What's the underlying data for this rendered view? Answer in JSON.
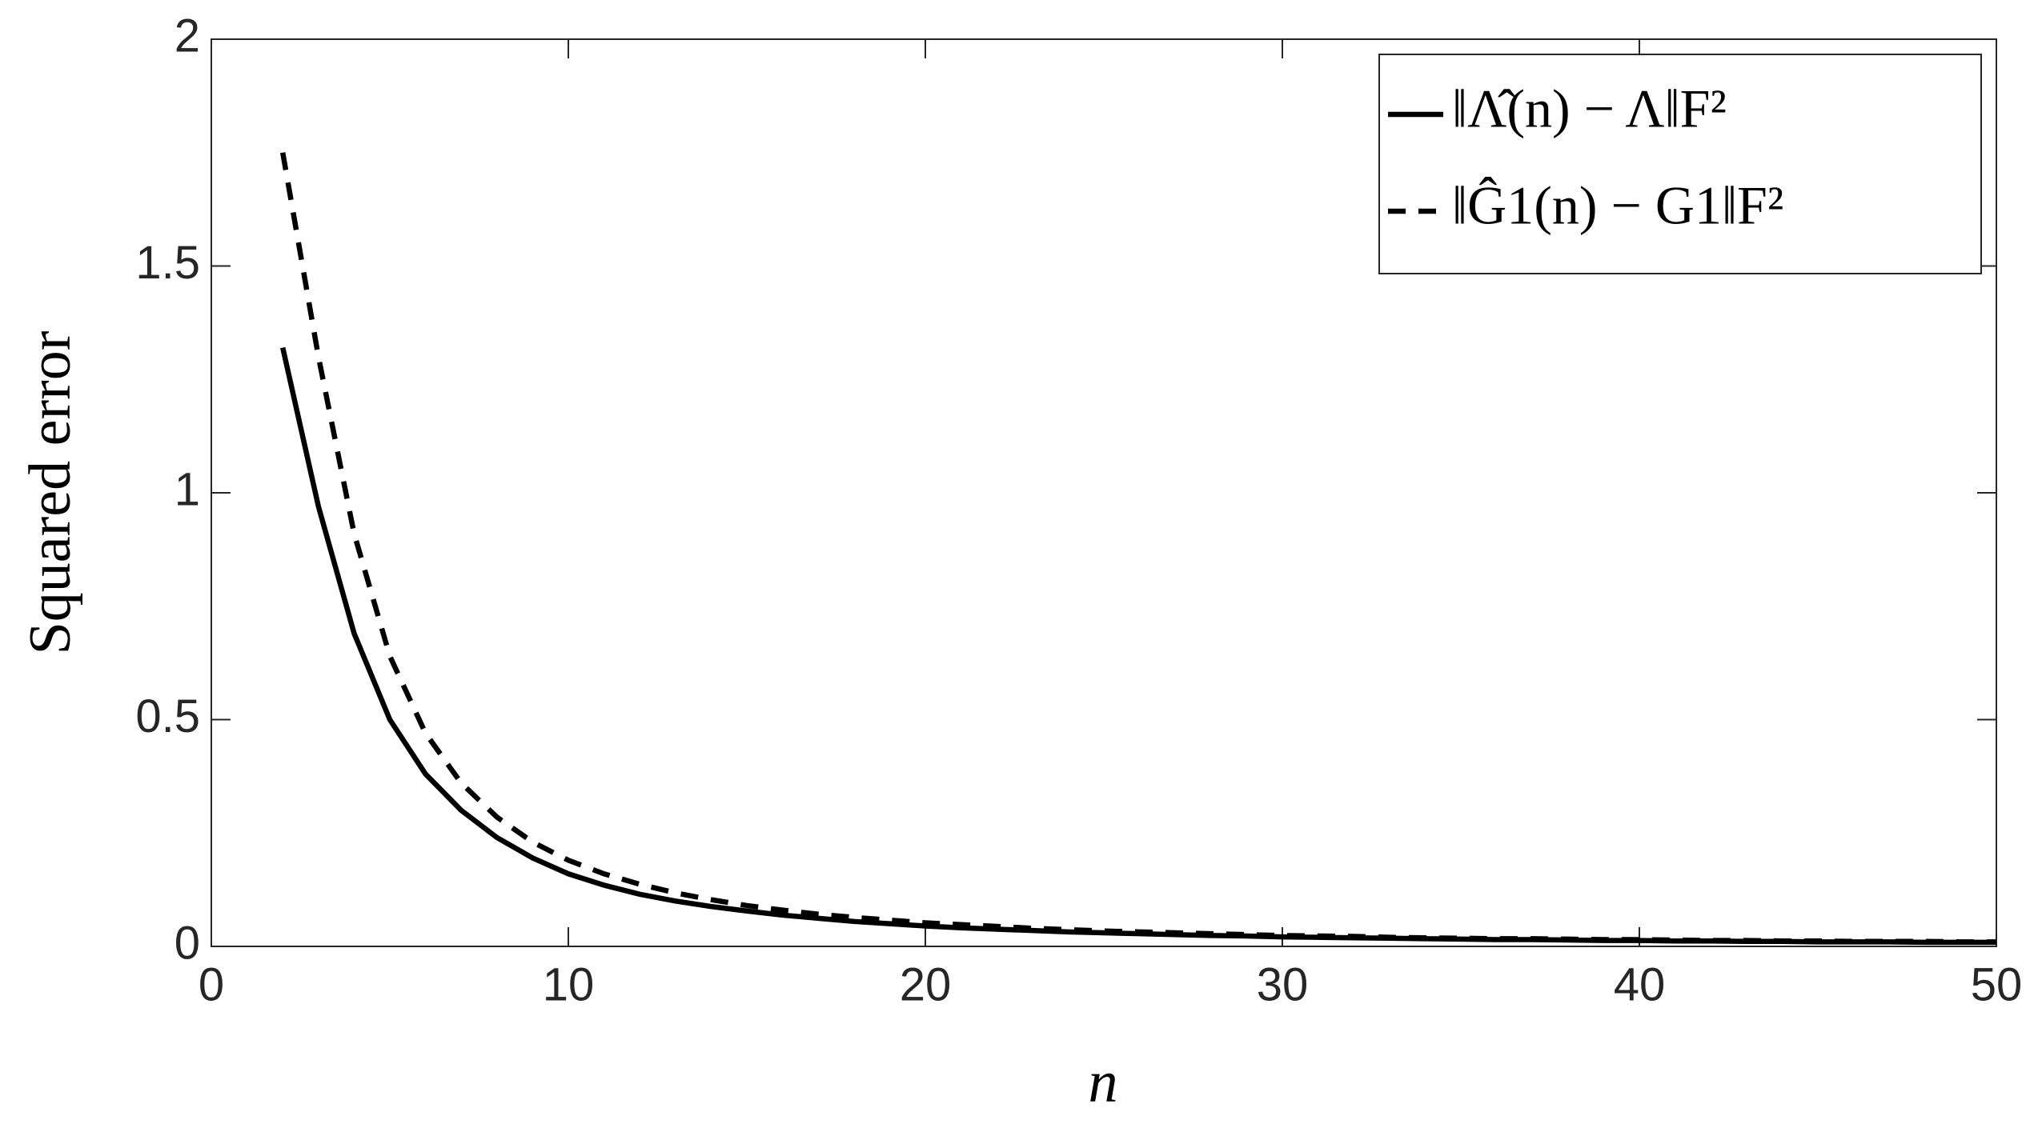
{
  "chart_data": {
    "type": "line",
    "xlabel": "n",
    "ylabel": "Squared error",
    "x": [
      2,
      3,
      4,
      5,
      6,
      7,
      8,
      9,
      10,
      11,
      12,
      13,
      14,
      15,
      16,
      17,
      18,
      19,
      20,
      21,
      22,
      23,
      24,
      25,
      26,
      27,
      28,
      29,
      30,
      31,
      32,
      33,
      34,
      35,
      36,
      37,
      38,
      39,
      40,
      41,
      42,
      43,
      44,
      45,
      46,
      47,
      48,
      49,
      50
    ],
    "series": [
      {
        "name": "‖Λ̂(n) − Λ‖F²",
        "color": "#000000",
        "dash": "solid",
        "values": [
          1.32,
          0.97,
          0.69,
          0.5,
          0.38,
          0.3,
          0.24,
          0.195,
          0.16,
          0.135,
          0.115,
          0.1,
          0.088,
          0.078,
          0.069,
          0.062,
          0.055,
          0.05,
          0.045,
          0.041,
          0.038,
          0.035,
          0.032,
          0.03,
          0.028,
          0.026,
          0.024,
          0.023,
          0.021,
          0.02,
          0.019,
          0.018,
          0.017,
          0.016,
          0.015,
          0.015,
          0.014,
          0.013,
          0.013,
          0.012,
          0.012,
          0.011,
          0.011,
          0.01,
          0.01,
          0.01,
          0.009,
          0.009,
          0.009
        ]
      },
      {
        "name": "‖Ĝ1(n) − G1‖F²",
        "color": "#000000",
        "dash": "dashed",
        "values": [
          1.75,
          1.3,
          0.91,
          0.64,
          0.47,
          0.36,
          0.285,
          0.23,
          0.19,
          0.16,
          0.137,
          0.118,
          0.103,
          0.09,
          0.08,
          0.071,
          0.064,
          0.058,
          0.052,
          0.048,
          0.044,
          0.04,
          0.037,
          0.034,
          0.032,
          0.03,
          0.028,
          0.026,
          0.024,
          0.023,
          0.022,
          0.02,
          0.019,
          0.018,
          0.017,
          0.017,
          0.016,
          0.015,
          0.015,
          0.014,
          0.013,
          0.013,
          0.012,
          0.012,
          0.011,
          0.011,
          0.011,
          0.01,
          0.01
        ]
      }
    ],
    "xlim": [
      0,
      50
    ],
    "xticks": [
      0,
      10,
      20,
      30,
      40,
      50
    ],
    "ylim": [
      0,
      2
    ],
    "yticks": [
      0,
      0.5,
      1,
      1.5,
      2
    ],
    "grid": false,
    "legend": "upper right"
  }
}
